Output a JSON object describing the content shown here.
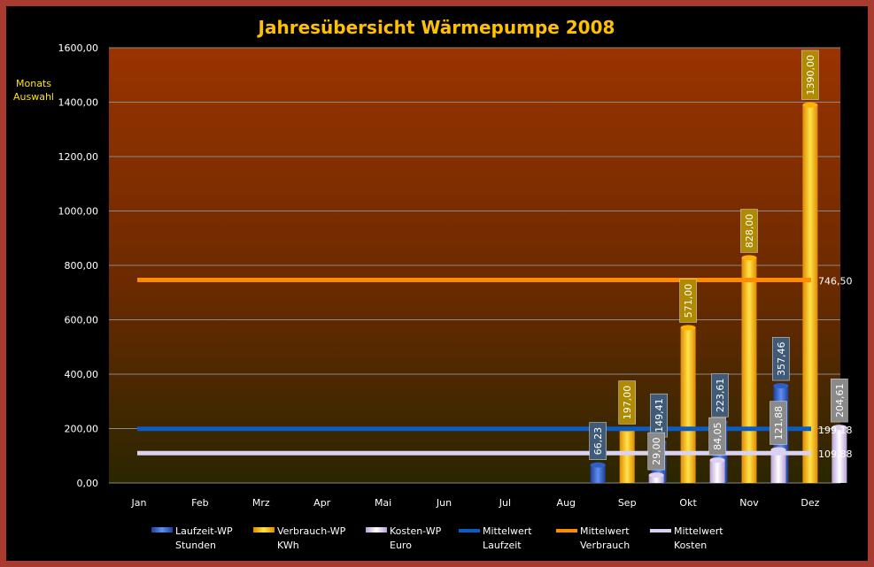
{
  "chart_data": {
    "type": "bar",
    "title": "Jahresübersicht Wärmepumpe  2008",
    "side_label": [
      "Monats",
      "Auswahl"
    ],
    "categories": [
      "Jan",
      "Feb",
      "Mrz",
      "Apr",
      "Mai",
      "Jun",
      "Jul",
      "Aug",
      "Sep",
      "Okt",
      "Nov",
      "Dez"
    ],
    "ylim": [
      0,
      1600
    ],
    "ytick_labels": [
      "0,00",
      "200,00",
      "400,00",
      "600,00",
      "800,00",
      "1000,00",
      "1200,00",
      "1400,00",
      "1600,00"
    ],
    "grid": true,
    "legend_position": "bottom",
    "series": [
      {
        "name_line1": "Laufzeit-WP",
        "name_line2": "Stunden",
        "kind": "bar",
        "color": "#3a6fd8",
        "values": [
          null,
          null,
          null,
          null,
          null,
          null,
          null,
          null,
          66.23,
          149.41,
          223.61,
          357.46
        ],
        "labels": [
          "",
          "",
          "",
          "",
          "",
          "",
          "",
          "",
          "66,23",
          "149,41",
          "223,61",
          "357,46"
        ]
      },
      {
        "name_line1": "Verbrauch-WP",
        "name_line2": "KWh",
        "kind": "bar",
        "color": "#ffc000",
        "values": [
          null,
          null,
          null,
          null,
          null,
          null,
          null,
          null,
          197.0,
          571.0,
          828.0,
          1390.0
        ],
        "labels": [
          "",
          "",
          "",
          "",
          "",
          "",
          "",
          "",
          "197,00",
          "571,00",
          "828,00",
          "1390,00"
        ]
      },
      {
        "name_line1": "Kosten-WP",
        "name_line2": "Euro",
        "kind": "bar",
        "color": "#e6d6f2",
        "values": [
          null,
          null,
          null,
          null,
          null,
          null,
          null,
          null,
          29.0,
          84.05,
          121.88,
          204.61
        ],
        "labels": [
          "",
          "",
          "",
          "",
          "",
          "",
          "",
          "",
          "29,00",
          "84,05",
          "121,88",
          "204,61"
        ]
      },
      {
        "name_line1": "Mittelwert",
        "name_line2": "Laufzeit",
        "kind": "line",
        "color": "#0b5cc2",
        "value": 199.18,
        "label": "199,18"
      },
      {
        "name_line1": "Mittelwert",
        "name_line2": "Verbrauch",
        "kind": "line",
        "color": "#ff8c00",
        "value": 746.5,
        "label": "746,50"
      },
      {
        "name_line1": "Mittelwert",
        "name_line2": "Kosten",
        "kind": "line",
        "color": "#d9d2f2",
        "value": 109.88,
        "label": "109,88"
      }
    ]
  }
}
